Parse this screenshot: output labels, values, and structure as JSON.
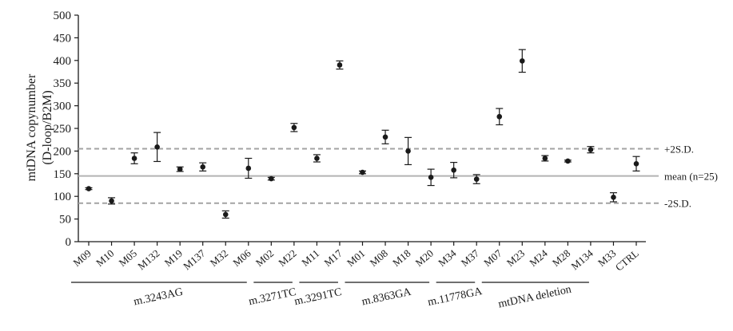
{
  "chart_data": {
    "type": "scatter",
    "ylabel_line1": "mtDNA copynumber",
    "ylabel_line2": "(D-loop/B2M)",
    "ylim": [
      0,
      500
    ],
    "yticks": [
      "0",
      "50",
      "100",
      "150",
      "200",
      "250",
      "300",
      "350",
      "400",
      "450",
      "500"
    ],
    "categories": [
      "M09",
      "M10",
      "M05",
      "M132",
      "M19",
      "M137",
      "M32",
      "M06",
      "M02",
      "M22",
      "M11",
      "M17",
      "M01",
      "M08",
      "M18",
      "M20",
      "M34",
      "M37",
      "M07",
      "M23",
      "M24",
      "M28",
      "M134",
      "M33",
      "CTRL"
    ],
    "values": [
      117,
      90,
      184,
      209,
      160,
      165,
      60,
      162,
      139,
      252,
      184,
      390,
      153,
      231,
      200,
      142,
      158,
      138,
      276,
      399,
      184,
      178,
      203,
      98,
      172
    ],
    "errors": [
      2,
      7,
      12,
      32,
      5,
      9,
      8,
      22,
      3,
      9,
      8,
      9,
      3,
      15,
      30,
      18,
      17,
      10,
      18,
      25,
      6,
      2,
      7,
      10,
      16
    ],
    "reference_lines": [
      {
        "label": "+2S.D.",
        "value": 205,
        "style": "dashed"
      },
      {
        "label": "mean (n=25)",
        "value": 145,
        "style": "solid"
      },
      {
        "label": "-2S.D.",
        "value": 85,
        "style": "dashed"
      }
    ],
    "groups": [
      {
        "label": "m.3243AG",
        "start": 0,
        "end": 7
      },
      {
        "label": "m.3271TC",
        "start": 8,
        "end": 9
      },
      {
        "label": "m.3291TC",
        "start": 10,
        "end": 11
      },
      {
        "label": "m.8363GA",
        "start": 12,
        "end": 15
      },
      {
        "label": "m.11778GA",
        "start": 16,
        "end": 17
      },
      {
        "label": "mtDNA deletion",
        "start": 18,
        "end": 22
      }
    ],
    "grid": false,
    "legend": "none"
  }
}
